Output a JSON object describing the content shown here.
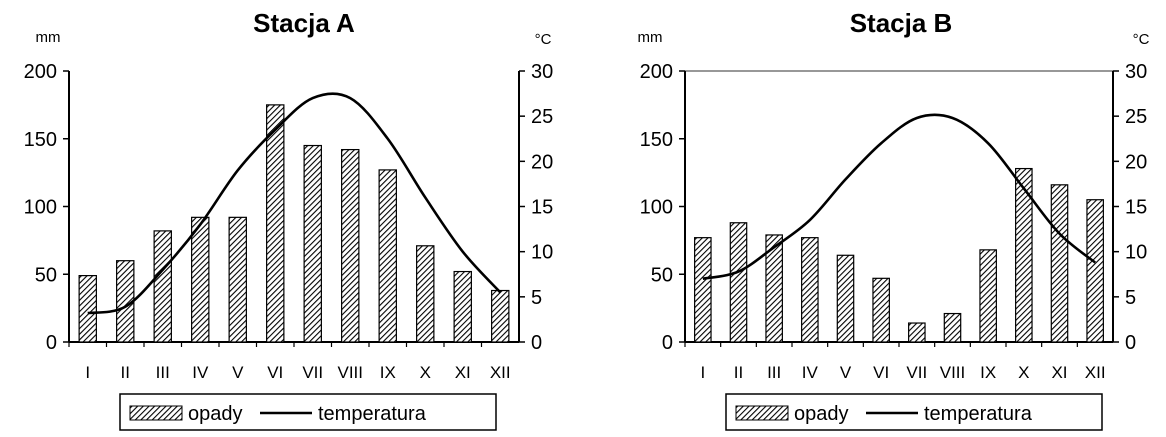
{
  "chart_data": [
    {
      "type": "bar",
      "title": "Stacja A",
      "ylabel_left": "mm",
      "ylabel_right": "°C",
      "categories": [
        "I",
        "II",
        "III",
        "IV",
        "V",
        "VI",
        "VII",
        "VIII",
        "IX",
        "X",
        "XI",
        "XII"
      ],
      "ylim_left": [
        0,
        200
      ],
      "ylim_right": [
        0,
        30
      ],
      "yticks_left": [
        "0",
        "50",
        "100",
        "150",
        "200"
      ],
      "yticks_right": [
        "0",
        "5",
        "10",
        "15",
        "20",
        "25",
        "30"
      ],
      "series": [
        {
          "name": "opady",
          "type": "bar",
          "axis": "left",
          "values": [
            49,
            60,
            82,
            92,
            92,
            175,
            145,
            142,
            127,
            71,
            52,
            38
          ]
        },
        {
          "name": "temperatura",
          "type": "line",
          "axis": "right",
          "values": [
            3.2,
            3.9,
            8,
            13,
            19,
            23.5,
            27,
            27,
            22.5,
            16,
            10,
            5.5
          ]
        }
      ],
      "legend": {
        "position": "bottom",
        "bar_label": "opady",
        "line_label": "temperatura"
      },
      "grid": false
    },
    {
      "type": "bar",
      "title": "Stacja B",
      "ylabel_left": "mm",
      "ylabel_right": "°C",
      "categories": [
        "I",
        "II",
        "III",
        "IV",
        "V",
        "VI",
        "VII",
        "VIII",
        "IX",
        "X",
        "XI",
        "XII"
      ],
      "ylim_left": [
        0,
        200
      ],
      "ylim_right": [
        0,
        30
      ],
      "yticks_left": [
        "0",
        "50",
        "100",
        "150",
        "200"
      ],
      "yticks_right": [
        "0",
        "5",
        "10",
        "15",
        "20",
        "25",
        "30"
      ],
      "series": [
        {
          "name": "opady",
          "type": "bar",
          "axis": "left",
          "values": [
            77,
            88,
            79,
            77,
            64,
            47,
            14,
            21,
            68,
            128,
            116,
            105
          ]
        },
        {
          "name": "temperatura",
          "type": "line",
          "axis": "right",
          "values": [
            7,
            7.8,
            10.5,
            13.5,
            18,
            22,
            24.8,
            24.8,
            22,
            17,
            12,
            8.8
          ]
        }
      ],
      "legend": {
        "position": "bottom",
        "bar_label": "opady",
        "line_label": "temperatura"
      },
      "grid": false
    }
  ]
}
